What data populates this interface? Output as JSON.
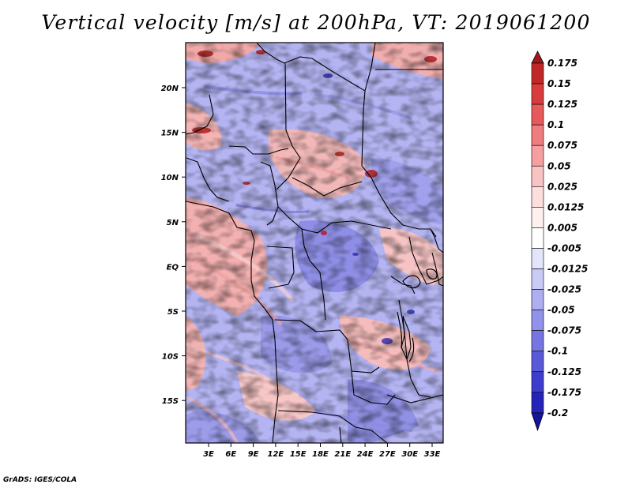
{
  "title": "Vertical velocity [m/s] at 200hPa, VT: 2019061200",
  "credit": "GrADS: IGES/COLA",
  "map": {
    "lon_labels": [
      "3E",
      "6E",
      "9E",
      "12E",
      "15E",
      "18E",
      "21E",
      "24E",
      "27E",
      "30E",
      "33E"
    ],
    "lat_labels": [
      "20N",
      "15N",
      "10N",
      "5N",
      "EQ",
      "5S",
      "10S",
      "15S"
    ]
  },
  "colorbar": {
    "labels": [
      "0.175",
      "0.15",
      "0.125",
      "0.1",
      "0.075",
      "0.05",
      "0.025",
      "0.0125",
      "0.005",
      "-0.005",
      "-0.0125",
      "-0.025",
      "-0.05",
      "-0.075",
      "-0.1",
      "-0.125",
      "-0.175",
      "-0.2"
    ],
    "colors": [
      "#a01818",
      "#c02828",
      "#d83c3c",
      "#e65a5a",
      "#ef7d7d",
      "#f5a0a0",
      "#f9c3c3",
      "#fcdede",
      "#fff0f0",
      "#ffffff",
      "#e4e4fb",
      "#cacaf6",
      "#aeaef0",
      "#9292ea",
      "#7676e2",
      "#5a5ad8",
      "#3e3ecc",
      "#2424b8",
      "#14149c"
    ]
  }
}
